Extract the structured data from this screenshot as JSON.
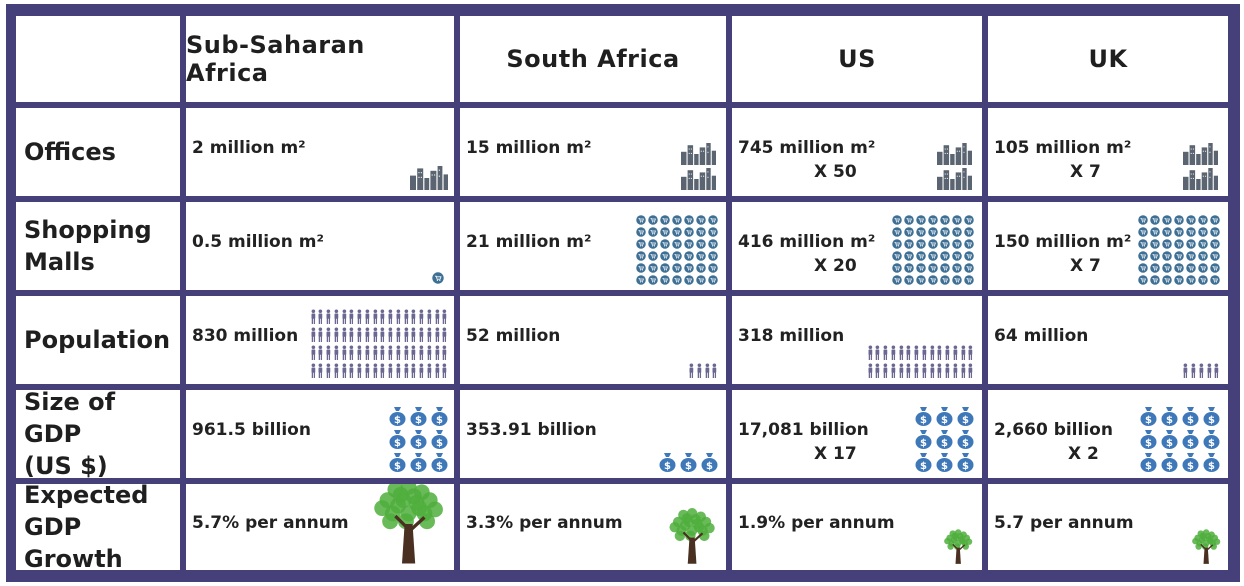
{
  "columns": [
    "Sub-Saharan Africa",
    "South Africa",
    "US",
    "UK"
  ],
  "rows": [
    {
      "key": "offices",
      "label_lines": [
        "Offices"
      ],
      "values": [
        "2 million m²",
        "15 million m²",
        "745 million m²",
        "105 million m²"
      ],
      "multipliers": [
        "",
        "",
        "X 50",
        "X 7"
      ],
      "icon": "city-icon"
    },
    {
      "key": "malls",
      "label_lines": [
        "Shopping",
        "Malls"
      ],
      "values": [
        "0.5 million m²",
        "21 million m²",
        "416 million m²",
        "150 million m²"
      ],
      "multipliers": [
        "",
        "",
        "X 20",
        "X 7"
      ],
      "icon": "shopping-cart-icon"
    },
    {
      "key": "population",
      "label_lines": [
        "Population"
      ],
      "values": [
        "830 million",
        "52 million",
        "318 million",
        "64 million"
      ],
      "multipliers": [
        "",
        "",
        "",
        ""
      ],
      "icon": "person-icon"
    },
    {
      "key": "gdp",
      "label_lines": [
        "Size of GDP",
        "(US $)"
      ],
      "values": [
        "961.5 billion",
        "353.91 billion",
        "17,081 billion",
        "2,660 billion"
      ],
      "multipliers": [
        "",
        "",
        "X 17",
        "X 2"
      ],
      "icon": "money-bag-icon"
    },
    {
      "key": "growth",
      "label_lines": [
        "Expected",
        "GDP Growth"
      ],
      "values": [
        "5.7% per annum",
        "3.3% per annum",
        "1.9% per annum",
        "5.7 per annum"
      ],
      "multipliers": [
        "",
        "",
        "",
        ""
      ],
      "icon": "tree-icon"
    }
  ],
  "colors": {
    "frame": "#45407a",
    "money": "#3f78b8",
    "cart": "#3e6f95",
    "person": "#6a6791",
    "building": "#5b6572",
    "tree_leaf": "#4fae3c",
    "tree_trunk": "#4a3020"
  }
}
